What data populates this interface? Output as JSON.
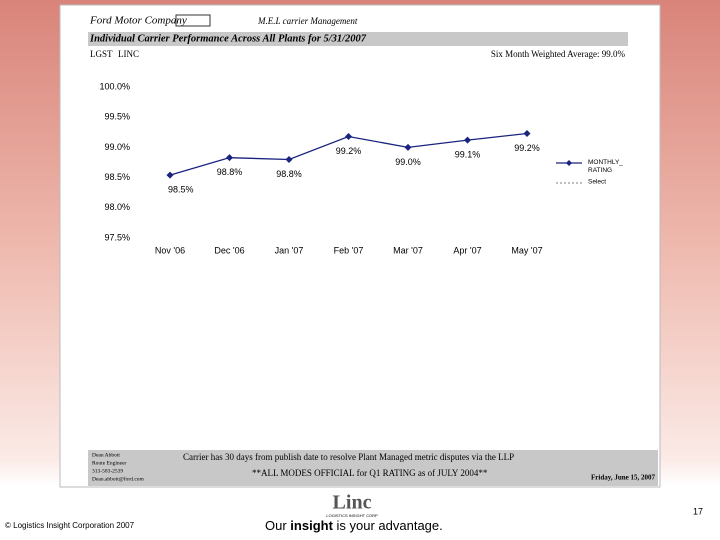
{
  "header": {
    "logo": "Ford Motor Company",
    "system": "M.E.L carrier Management",
    "banner": "Individual Carrier Performance Across All Plants for  5/31/2007",
    "carrier_code": "LGST",
    "carrier_name": "LINC",
    "average": "Six Month Weighted Average: 99.0%"
  },
  "chart_data": {
    "type": "line",
    "categories": [
      "Nov '06",
      "Dec '06",
      "Jan '07",
      "Feb '07",
      "Mar '07",
      "Apr '07",
      "May '07"
    ],
    "series": [
      {
        "name": "MONTHLY_ RATING",
        "color": "#1a237e",
        "values": [
          98.54,
          98.83,
          98.8,
          99.18,
          99.0,
          99.12,
          99.23
        ],
        "value_labels": [
          "98.5%",
          "98.8%",
          "98.8%",
          "99.2%",
          "99.0%",
          "99.1%",
          "99.2%"
        ]
      },
      {
        "name": "Select",
        "color": "#999999",
        "values": [
          null,
          null,
          null,
          null,
          null,
          null,
          null
        ]
      }
    ],
    "ylim": [
      97.5,
      100
    ],
    "yticks": [
      {
        "value": 97.5,
        "label": "97.5%"
      },
      {
        "value": 98,
        "label": "98.0%"
      },
      {
        "value": 98.5,
        "label": "98.5%"
      },
      {
        "value": 99,
        "label": "99.0%"
      },
      {
        "value": 99.5,
        "label": "99.5%"
      },
      {
        "value": 100,
        "label": "100.0%"
      }
    ],
    "grid": false,
    "legend": "right"
  },
  "report_footer": {
    "contact": [
      "Dean Abbott",
      "Route Engineer",
      "313-583-2539",
      "Dean.abbott@ford.com"
    ],
    "notice": "Carrier has 30 days from publish date to resolve Plant Managed metric disputes via the LLP",
    "official": "**ALL MODES OFFICIAL for Q1 RATING as of JULY 2004**",
    "date": "Friday, June 15, 2007"
  },
  "slide": {
    "copyright": "© Logistics Insight Corporation 2007",
    "logo": "Linc",
    "logo_sub": "LOGISTICS INSIGHT CORP",
    "tagline": [
      "Our ",
      "insight",
      " is your advantage."
    ],
    "page": "17"
  }
}
